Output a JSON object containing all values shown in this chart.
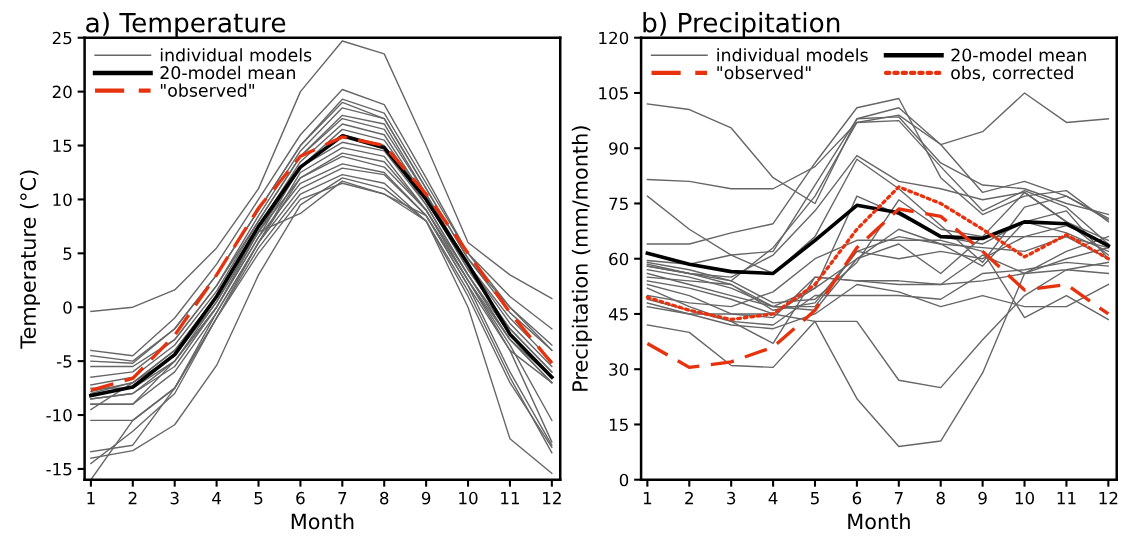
{
  "chart_data": [
    {
      "type": "line",
      "title": "a) Temperature",
      "xlabel": "Month",
      "ylabel": "Temperature (°C)",
      "x": [
        1,
        2,
        3,
        4,
        5,
        6,
        7,
        8,
        9,
        10,
        11,
        12
      ],
      "xlim": [
        0.85,
        12.2
      ],
      "xticks": [
        1,
        2,
        3,
        4,
        5,
        6,
        7,
        8,
        9,
        10,
        11,
        12
      ],
      "ylim": [
        -16,
        25
      ],
      "yticks": [
        -15,
        -10,
        -5,
        0,
        5,
        10,
        15,
        20,
        25
      ],
      "grid": false,
      "legend": "top left",
      "marker": "none",
      "series": [
        {
          "name": "individual models",
          "color": "#666666",
          "line_style": "solid",
          "values": [
            -0.4,
            0,
            1.6,
            5.5,
            11,
            20,
            24.7,
            23.5,
            15,
            6,
            3,
            0.8
          ]
        },
        {
          "color": "#666666",
          "line_style": "solid",
          "values": [
            -4,
            -4.5,
            -1,
            4,
            10,
            16,
            20.2,
            18.8,
            12,
            5,
            1,
            -2
          ]
        },
        {
          "color": "#666666",
          "line_style": "solid",
          "values": [
            -4.5,
            -5,
            -2,
            3,
            9,
            15,
            19.3,
            18,
            11.5,
            5,
            0,
            -3.5
          ]
        },
        {
          "color": "#666666",
          "line_style": "solid",
          "values": [
            -5,
            -5.2,
            -2,
            3,
            9,
            15,
            19,
            17.5,
            11,
            4.5,
            0,
            -4
          ]
        },
        {
          "color": "#666666",
          "line_style": "solid",
          "values": [
            -5.5,
            -5.5,
            -3,
            2,
            8.5,
            14.5,
            18.5,
            17.5,
            11,
            4.5,
            -0.5,
            -4
          ]
        },
        {
          "color": "#666666",
          "line_style": "solid",
          "values": [
            -6.5,
            -6,
            -3,
            2,
            8,
            14,
            17.8,
            17,
            10.5,
            4,
            -1,
            -5
          ]
        },
        {
          "color": "#666666",
          "line_style": "solid",
          "values": [
            -7.2,
            -6.5,
            -3.5,
            1.5,
            8,
            14,
            17.5,
            16.5,
            10.5,
            4,
            -1.5,
            -5.5
          ]
        },
        {
          "color": "#666666",
          "line_style": "solid",
          "values": [
            -7.8,
            -7,
            -4,
            1,
            7.5,
            13.5,
            17,
            16,
            10,
            3.5,
            -2,
            -6
          ]
        },
        {
          "color": "#666666",
          "line_style": "solid",
          "values": [
            -8,
            -7,
            -4,
            1,
            7,
            13,
            16.5,
            15.5,
            10,
            3.5,
            -2,
            -6
          ]
        },
        {
          "color": "#666666",
          "line_style": "solid",
          "values": [
            -8.5,
            -8,
            -5,
            0,
            7,
            13,
            16,
            15,
            9.5,
            3,
            -2.5,
            -6.5
          ]
        },
        {
          "color": "#666666",
          "line_style": "solid",
          "values": [
            -9,
            -9,
            -5,
            0,
            6.5,
            13,
            15.3,
            14.5,
            9.5,
            3,
            -3,
            -6.5
          ]
        },
        {
          "color": "#666666",
          "line_style": "solid",
          "values": [
            -9,
            -9,
            -6,
            -0.5,
            6,
            12.5,
            14.8,
            14,
            9,
            3,
            -3,
            -7
          ]
        },
        {
          "color": "#666666",
          "line_style": "solid",
          "values": [
            -10.5,
            -10.5,
            -7.5,
            -1,
            6,
            12,
            14.3,
            13.5,
            9,
            2.5,
            -3,
            -7
          ]
        },
        {
          "color": "#666666",
          "line_style": "solid",
          "values": [
            -7.5,
            -7.5,
            -5,
            0.5,
            7,
            12,
            14,
            13,
            9,
            2.5,
            -3.5,
            -10.5
          ]
        },
        {
          "color": "#666666",
          "line_style": "solid",
          "values": [
            -8.5,
            -8,
            -5.5,
            0,
            6.5,
            11.5,
            13.3,
            12.5,
            8.5,
            2,
            -4,
            -12.5
          ]
        },
        {
          "color": "#666666",
          "line_style": "solid",
          "values": [
            -13.4,
            -12.8,
            -7.5,
            -0.5,
            6,
            11,
            12.9,
            12.3,
            8.5,
            2,
            -6,
            -12.8
          ]
        },
        {
          "color": "#666666",
          "line_style": "solid",
          "values": [
            -14.5,
            -11.5,
            -8,
            -1,
            5.5,
            10.5,
            12.3,
            11.5,
            8,
            1.5,
            -6.5,
            -13.5
          ]
        },
        {
          "color": "#666666",
          "line_style": "solid",
          "values": [
            -14,
            -13.3,
            -10.9,
            -5.4,
            3,
            9.5,
            12,
            11,
            8,
            1,
            -7,
            -13
          ]
        },
        {
          "color": "#666666",
          "line_style": "solid",
          "values": [
            -16,
            -10.5,
            -7.5,
            -1,
            5,
            10,
            11.5,
            10.5,
            8,
            0,
            -12.2,
            -15.4
          ]
        },
        {
          "color": "#666666",
          "line_style": "solid",
          "values": [
            -9.5,
            -7,
            -4.5,
            0.5,
            7,
            8.7,
            11.7,
            10.5,
            8.5,
            2.5,
            -4,
            -7
          ]
        },
        {
          "name": "20-model mean",
          "color": "#000000",
          "line_style": "solid",
          "values": [
            -8.2,
            -7.4,
            -4.4,
            1,
            7.5,
            13,
            15.9,
            14.8,
            10,
            4,
            -2.5,
            -6.5
          ]
        },
        {
          "name": "\"observed\"",
          "color": "#e8320e",
          "line_style": "dashed",
          "values": [
            -7.7,
            -6.6,
            -2.6,
            3,
            9.2,
            14,
            15.8,
            15,
            10.5,
            5,
            -0.5,
            -5.2
          ]
        }
      ]
    },
    {
      "type": "line",
      "title": "b) Precipitation",
      "xlabel": "Month",
      "ylabel": "Precipitation (mm/month)",
      "x": [
        1,
        2,
        3,
        4,
        5,
        6,
        7,
        8,
        9,
        10,
        11,
        12
      ],
      "xlim": [
        0.85,
        12.2
      ],
      "xticks": [
        1,
        2,
        3,
        4,
        5,
        6,
        7,
        8,
        9,
        10,
        11,
        12
      ],
      "ylim": [
        0,
        120
      ],
      "yticks": [
        0,
        15,
        30,
        45,
        60,
        75,
        90,
        105,
        120
      ],
      "grid": false,
      "legend": "top left",
      "marker": "none",
      "series": [
        {
          "name": "individual models",
          "color": "#666666",
          "line_style": "solid",
          "values": [
            102,
            100.5,
            95.5,
            82,
            75,
            98,
            101,
            91,
            94.5,
            105,
            97,
            98
          ]
        },
        {
          "color": "#666666",
          "line_style": "solid",
          "values": [
            81.5,
            81,
            79,
            79,
            85,
            97,
            99,
            91,
            78,
            81,
            77,
            70.5
          ]
        },
        {
          "color": "#666666",
          "line_style": "solid",
          "values": [
            77,
            68,
            61,
            56,
            66,
            87,
            79,
            69,
            59,
            74,
            77,
            71
          ]
        },
        {
          "color": "#666666",
          "line_style": "solid",
          "values": [
            64,
            64,
            67,
            69.5,
            86,
            101,
            103.5,
            82,
            72,
            77,
            78.5,
            70
          ]
        },
        {
          "color": "#666666",
          "line_style": "solid",
          "values": [
            59.5,
            58.5,
            61,
            62,
            80,
            98,
            98.5,
            86,
            80,
            79,
            75,
            72
          ]
        },
        {
          "color": "#666666",
          "line_style": "solid",
          "values": [
            59,
            57,
            54,
            63,
            77,
            97,
            97.5,
            85,
            73,
            78.5,
            74,
            64
          ]
        },
        {
          "color": "#666666",
          "line_style": "solid",
          "values": [
            58.5,
            56,
            55,
            61,
            73,
            88,
            81,
            79,
            76,
            78,
            70,
            65
          ]
        },
        {
          "color": "#666666",
          "line_style": "solid",
          "values": [
            58,
            56,
            54,
            48,
            49,
            59,
            76,
            68,
            66,
            78,
            70,
            61
          ]
        },
        {
          "color": "#666666",
          "line_style": "solid",
          "values": [
            58,
            56,
            53,
            47,
            52,
            77,
            72,
            66,
            64,
            70,
            67,
            62
          ]
        },
        {
          "color": "#666666",
          "line_style": "solid",
          "values": [
            57,
            55,
            52,
            47,
            46,
            60,
            68,
            64,
            58,
            70,
            73,
            60
          ]
        },
        {
          "color": "#666666",
          "line_style": "solid",
          "values": [
            56,
            53,
            50,
            47,
            47,
            62,
            66,
            64,
            63,
            62,
            66,
            60
          ]
        },
        {
          "color": "#666666",
          "line_style": "solid",
          "values": [
            55,
            54,
            53,
            46,
            48,
            62,
            60,
            62,
            60,
            66,
            66,
            63
          ]
        },
        {
          "color": "#666666",
          "line_style": "solid",
          "values": [
            54,
            52,
            49,
            45,
            52,
            60,
            64,
            56,
            66,
            66,
            69,
            64
          ]
        },
        {
          "color": "#666666",
          "line_style": "solid",
          "values": [
            53,
            50,
            45,
            44,
            55,
            54,
            54,
            53,
            54,
            56,
            57,
            59
          ]
        },
        {
          "color": "#666666",
          "line_style": "solid",
          "values": [
            52,
            47,
            43,
            37,
            55,
            54,
            53,
            53,
            61,
            56,
            60,
            63
          ]
        },
        {
          "color": "#666666",
          "line_style": "solid",
          "values": [
            49,
            46,
            43,
            42,
            50,
            50,
            50,
            49,
            56,
            57,
            59,
            58
          ]
        },
        {
          "color": "#666666",
          "line_style": "solid",
          "values": [
            48,
            45,
            42,
            41,
            45,
            53,
            51,
            47,
            50,
            47,
            47,
            53
          ]
        },
        {
          "color": "#666666",
          "line_style": "solid",
          "values": [
            42,
            40,
            31,
            30.5,
            43,
            43,
            27,
            25,
            38,
            50,
            57,
            56
          ]
        },
        {
          "color": "#666666",
          "line_style": "solid",
          "values": [
            47,
            45,
            45,
            45,
            43,
            22,
            9,
            10.5,
            29,
            56,
            62,
            66
          ]
        },
        {
          "color": "#666666",
          "line_style": "solid",
          "values": [
            50,
            48,
            47,
            51,
            60,
            65,
            65,
            65,
            62,
            44,
            50,
            43.5
          ]
        },
        {
          "name": "20-model mean",
          "color": "#000000",
          "line_style": "solid",
          "values": [
            61.5,
            58.5,
            56.5,
            56,
            65,
            74.5,
            72.5,
            66,
            65.5,
            70,
            69.5,
            63.5
          ]
        },
        {
          "name": "\"observed\"",
          "color": "#e8320e",
          "line_style": "dashed",
          "values": [
            37,
            30.5,
            32,
            36,
            46,
            63,
            73.5,
            71.5,
            62,
            51.5,
            53,
            45
          ]
        },
        {
          "name": "obs, corrected",
          "color": "#e8320e",
          "line_style": "dotted",
          "values": [
            49.5,
            46,
            43.5,
            45,
            53,
            68,
            79.5,
            75,
            68,
            60.5,
            66.5,
            60
          ]
        }
      ]
    }
  ]
}
